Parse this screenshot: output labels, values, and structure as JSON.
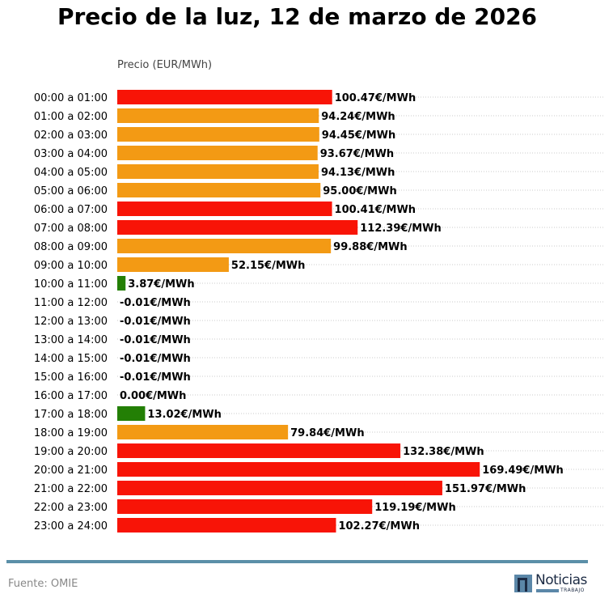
{
  "chart_data": {
    "type": "bar",
    "orientation": "horizontal",
    "title": "Precio de la luz, 12 de marzo de 2026",
    "xlabel": "Precio (EUR/MWh)",
    "ylabel": "",
    "unit_suffix": "€/MWh",
    "grid": "dotted horizontal lines per row",
    "categories": [
      "00:00 a 01:00",
      "01:00 a 02:00",
      "02:00 a 03:00",
      "03:00 a 04:00",
      "04:00 a 05:00",
      "05:00 a 06:00",
      "06:00 a 07:00",
      "07:00 a 08:00",
      "08:00 a 09:00",
      "09:00 a 10:00",
      "10:00 a 11:00",
      "11:00 a 12:00",
      "12:00 a 13:00",
      "13:00 a 14:00",
      "14:00 a 15:00",
      "15:00 a 16:00",
      "16:00 a 17:00",
      "17:00 a 18:00",
      "18:00 a 19:00",
      "19:00 a 20:00",
      "20:00 a 21:00",
      "21:00 a 22:00",
      "22:00 a 23:00",
      "23:00 a 24:00"
    ],
    "values": [
      100.47,
      94.24,
      94.45,
      93.67,
      94.13,
      95.0,
      100.41,
      112.39,
      99.88,
      52.15,
      3.87,
      -0.01,
      -0.01,
      -0.01,
      -0.01,
      -0.01,
      0.0,
      13.02,
      79.84,
      132.38,
      169.49,
      151.97,
      119.19,
      102.27
    ],
    "labels": [
      "100.47€/MWh",
      "94.24€/MWh",
      "94.45€/MWh",
      "93.67€/MWh",
      "94.13€/MWh",
      "95.00€/MWh",
      "100.41€/MWh",
      "112.39€/MWh",
      "99.88€/MWh",
      "52.15€/MWh",
      "3.87€/MWh",
      "-0.01€/MWh",
      "-0.01€/MWh",
      "-0.01€/MWh",
      "-0.01€/MWh",
      "-0.01€/MWh",
      "0.00€/MWh",
      "13.02€/MWh",
      "79.84€/MWh",
      "132.38€/MWh",
      "169.49€/MWh",
      "151.97€/MWh",
      "119.19€/MWh",
      "102.27€/MWh"
    ],
    "levels": [
      "high",
      "mid",
      "mid",
      "mid",
      "mid",
      "mid",
      "high",
      "high",
      "mid",
      "mid",
      "low",
      "low",
      "low",
      "low",
      "low",
      "low",
      "low",
      "low",
      "mid",
      "high",
      "high",
      "high",
      "high",
      "high"
    ],
    "xlim": [
      0,
      228
    ]
  },
  "colors": {
    "high": "#f81407",
    "mid": "#f39a14",
    "low": "#237f05",
    "grid": "#bbbbbb",
    "footer_line": "#5b8fa8"
  },
  "footer": {
    "source": "Fuente: OMIE",
    "logo_text": "Noticias",
    "logo_sub": "TRABAJO"
  }
}
